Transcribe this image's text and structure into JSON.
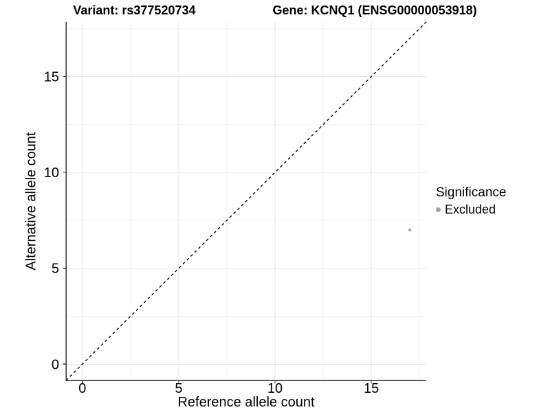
{
  "title": {
    "variant": "Variant: rs377520734",
    "gene": "Gene: KCNQ1 (ENSG00000053918)"
  },
  "chart_data": {
    "type": "scatter",
    "title": "Variant: rs377520734   Gene: KCNQ1 (ENSG00000053918)",
    "xlabel": "Reference allele count",
    "ylabel": "Alternative allele count",
    "xlim": [
      -0.85,
      17.85
    ],
    "ylim": [
      -0.85,
      17.85
    ],
    "xticks": [
      0,
      5,
      10,
      15
    ],
    "yticks": [
      0,
      5,
      10,
      15
    ],
    "minor_ticks": [
      2.5,
      7.5,
      12.5,
      17.5
    ],
    "grid": "major+minor",
    "points": [
      {
        "x": 17,
        "y": 7,
        "series": "Excluded"
      }
    ],
    "identity_line": {
      "type": "y=x",
      "style": "dashed",
      "color": "#000000"
    },
    "legend": {
      "title": "Significance",
      "position": "right",
      "items": [
        {
          "label": "Excluded",
          "color": "#a3a3a3"
        }
      ]
    },
    "colors": {
      "point": "#a8a8a8",
      "grid_major": "#e4e4e4",
      "grid_minor": "#f1f1f1",
      "axis_line": "#333333",
      "tick_label": "#000000"
    }
  }
}
